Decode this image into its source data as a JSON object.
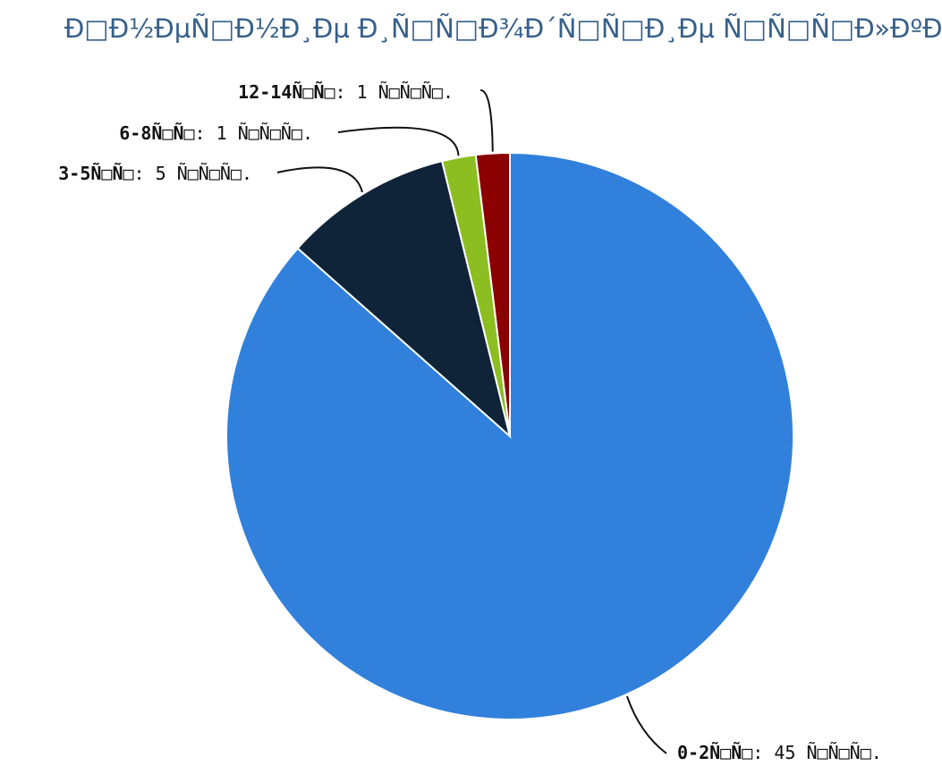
{
  "chart_data": {
    "type": "pie",
    "title": "Ð□Ð½ÐµÑ□Ð½Ð¸Ðµ Ð¸Ñ□Ñ□Ð¾Ð´Ñ□Ñ□Ð¸Ðµ Ñ□Ñ□Ñ□Ð»ÐºÐ¸",
    "categories": [
      "0-2Ñ□Ñ□",
      "3-5Ñ□Ñ□",
      "6-8Ñ□Ñ□",
      "12-14Ñ□Ñ□"
    ],
    "values": [
      45,
      5,
      1,
      1
    ],
    "value_labels": [
      ": 45 Ñ□Ñ□Ñ□.",
      ": 5 Ñ□Ñ□Ñ□.",
      ": 1 Ñ□Ñ□Ñ□.",
      ": 1 Ñ□Ñ□Ñ□."
    ],
    "colors": [
      "#3181dc",
      "#0f2339",
      "#8cbe22",
      "#8b0000"
    ]
  }
}
